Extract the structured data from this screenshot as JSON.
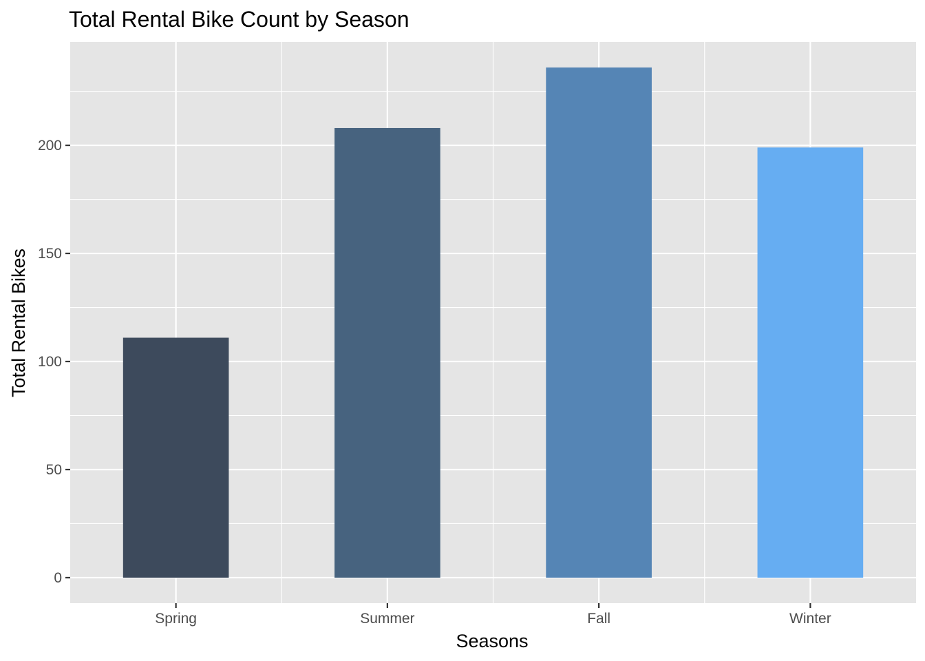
{
  "chart_data": {
    "type": "bar",
    "title": "Total Rental Bike Count by Season",
    "xlabel": "Seasons",
    "ylabel": "Total Rental Bikes",
    "categories": [
      "Spring",
      "Summer",
      "Fall",
      "Winter"
    ],
    "values": [
      111,
      208,
      236,
      199
    ],
    "bar_colors": [
      "#3d4a5c",
      "#47637f",
      "#5585b5",
      "#66adf2"
    ],
    "ylim": [
      -11.8,
      247.8
    ],
    "yticks": [
      0,
      50,
      100,
      150,
      200
    ],
    "ytick_labels": [
      "0",
      "50",
      "100",
      "150",
      "200"
    ],
    "grid": true,
    "legend": "none",
    "panel_background": "#e5e5e5",
    "grid_color": "#ffffff"
  }
}
